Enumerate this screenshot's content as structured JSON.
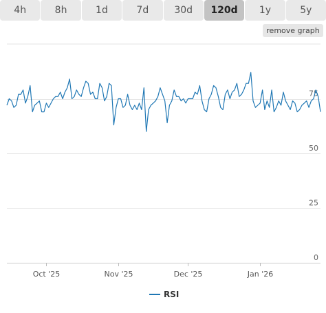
{
  "range_tabs": [
    {
      "label": "4h",
      "active": false
    },
    {
      "label": "8h",
      "active": false
    },
    {
      "label": "1d",
      "active": false
    },
    {
      "label": "7d",
      "active": false
    },
    {
      "label": "30d",
      "active": false
    },
    {
      "label": "120d",
      "active": true
    },
    {
      "label": "1y",
      "active": false
    },
    {
      "label": "5y",
      "active": false
    }
  ],
  "remove_graph_label": "remove graph",
  "colors": {
    "series": "#1f77b4",
    "grid": "#e3e3e3",
    "axis": "#dddddd",
    "tab_bg": "#e9e9e9",
    "tab_active_bg": "#c3c3c3"
  },
  "chart_data": {
    "type": "line",
    "title": "",
    "xlabel": "",
    "ylabel": "",
    "ylim": [
      0,
      100
    ],
    "yticks": [
      0,
      25,
      50,
      75
    ],
    "ytick_labels": [
      "0",
      "25",
      "50",
      "75"
    ],
    "grid": true,
    "legend_position": "bottom",
    "xlim": [
      "2025-09-14",
      "2026-01-27"
    ],
    "xticks": [
      {
        "date": "2025-10-01",
        "label": "Oct '25"
      },
      {
        "date": "2025-11-01",
        "label": "Nov '25"
      },
      {
        "date": "2025-12-01",
        "label": "Dec '25"
      },
      {
        "date": "2026-01-01",
        "label": "Jan '26"
      }
    ],
    "series": [
      {
        "name": "RSI",
        "color": "#1f77b4",
        "points": [
          [
            "2025-09-14",
            72
          ],
          [
            "2025-09-15",
            75
          ],
          [
            "2025-09-16",
            74
          ],
          [
            "2025-09-17",
            71
          ],
          [
            "2025-09-18",
            72
          ],
          [
            "2025-09-19",
            77
          ],
          [
            "2025-09-20",
            77
          ],
          [
            "2025-09-21",
            79
          ],
          [
            "2025-09-22",
            73
          ],
          [
            "2025-09-23",
            76
          ],
          [
            "2025-09-24",
            81
          ],
          [
            "2025-09-25",
            69
          ],
          [
            "2025-09-26",
            72
          ],
          [
            "2025-09-27",
            73
          ],
          [
            "2025-09-28",
            74
          ],
          [
            "2025-09-29",
            69
          ],
          [
            "2025-09-30",
            69
          ],
          [
            "2025-10-01",
            73
          ],
          [
            "2025-10-02",
            71
          ],
          [
            "2025-10-03",
            73
          ],
          [
            "2025-10-04",
            75
          ],
          [
            "2025-10-05",
            76
          ],
          [
            "2025-10-06",
            76
          ],
          [
            "2025-10-07",
            78
          ],
          [
            "2025-10-08",
            75
          ],
          [
            "2025-10-09",
            78
          ],
          [
            "2025-10-10",
            80
          ],
          [
            "2025-10-11",
            84
          ],
          [
            "2025-10-12",
            75
          ],
          [
            "2025-10-13",
            76
          ],
          [
            "2025-10-14",
            79
          ],
          [
            "2025-10-15",
            77
          ],
          [
            "2025-10-16",
            76
          ],
          [
            "2025-10-17",
            80
          ],
          [
            "2025-10-18",
            83
          ],
          [
            "2025-10-19",
            82
          ],
          [
            "2025-10-20",
            77
          ],
          [
            "2025-10-21",
            78
          ],
          [
            "2025-10-22",
            75
          ],
          [
            "2025-10-23",
            75
          ],
          [
            "2025-10-24",
            82
          ],
          [
            "2025-10-25",
            80
          ],
          [
            "2025-10-26",
            74
          ],
          [
            "2025-10-27",
            76
          ],
          [
            "2025-10-28",
            82
          ],
          [
            "2025-10-29",
            81
          ],
          [
            "2025-10-30",
            63
          ],
          [
            "2025-10-31",
            71
          ],
          [
            "2025-11-01",
            75
          ],
          [
            "2025-11-02",
            75
          ],
          [
            "2025-11-03",
            71
          ],
          [
            "2025-11-04",
            72
          ],
          [
            "2025-11-05",
            77
          ],
          [
            "2025-11-06",
            72
          ],
          [
            "2025-11-07",
            70
          ],
          [
            "2025-11-08",
            72
          ],
          [
            "2025-11-09",
            70
          ],
          [
            "2025-11-10",
            73
          ],
          [
            "2025-11-11",
            70
          ],
          [
            "2025-11-12",
            80
          ],
          [
            "2025-11-13",
            60
          ],
          [
            "2025-11-14",
            70
          ],
          [
            "2025-11-15",
            72
          ],
          [
            "2025-11-16",
            73
          ],
          [
            "2025-11-17",
            74
          ],
          [
            "2025-11-18",
            76
          ],
          [
            "2025-11-19",
            80
          ],
          [
            "2025-11-20",
            77
          ],
          [
            "2025-11-21",
            74
          ],
          [
            "2025-11-22",
            64
          ],
          [
            "2025-11-23",
            72
          ],
          [
            "2025-11-24",
            74
          ],
          [
            "2025-11-25",
            79
          ],
          [
            "2025-11-26",
            76
          ],
          [
            "2025-11-27",
            76
          ],
          [
            "2025-11-28",
            74
          ],
          [
            "2025-11-29",
            75
          ],
          [
            "2025-11-30",
            73
          ],
          [
            "2025-12-01",
            75
          ],
          [
            "2025-12-02",
            75
          ],
          [
            "2025-12-03",
            75
          ],
          [
            "2025-12-04",
            78
          ],
          [
            "2025-12-05",
            77
          ],
          [
            "2025-12-06",
            81
          ],
          [
            "2025-12-07",
            74
          ],
          [
            "2025-12-08",
            70
          ],
          [
            "2025-12-09",
            69
          ],
          [
            "2025-12-10",
            75
          ],
          [
            "2025-12-11",
            77
          ],
          [
            "2025-12-12",
            81
          ],
          [
            "2025-12-13",
            80
          ],
          [
            "2025-12-14",
            76
          ],
          [
            "2025-12-15",
            71
          ],
          [
            "2025-12-16",
            70
          ],
          [
            "2025-12-17",
            77
          ],
          [
            "2025-12-18",
            79
          ],
          [
            "2025-12-19",
            75
          ],
          [
            "2025-12-20",
            78
          ],
          [
            "2025-12-21",
            79
          ],
          [
            "2025-12-22",
            82
          ],
          [
            "2025-12-23",
            76
          ],
          [
            "2025-12-24",
            77
          ],
          [
            "2025-12-25",
            79
          ],
          [
            "2025-12-26",
            82
          ],
          [
            "2025-12-27",
            82
          ],
          [
            "2025-12-28",
            87
          ],
          [
            "2025-12-29",
            74
          ],
          [
            "2025-12-30",
            71
          ],
          [
            "2025-12-31",
            72
          ],
          [
            "2026-01-01",
            73
          ],
          [
            "2026-01-02",
            79
          ],
          [
            "2026-01-03",
            70
          ],
          [
            "2026-01-04",
            74
          ],
          [
            "2026-01-05",
            71
          ],
          [
            "2026-01-06",
            79
          ],
          [
            "2026-01-07",
            69
          ],
          [
            "2026-01-08",
            71
          ],
          [
            "2026-01-09",
            74
          ],
          [
            "2026-01-10",
            72
          ],
          [
            "2026-01-11",
            78
          ],
          [
            "2026-01-12",
            74
          ],
          [
            "2026-01-13",
            72
          ],
          [
            "2026-01-14",
            70
          ],
          [
            "2026-01-15",
            74
          ],
          [
            "2026-01-16",
            73
          ],
          [
            "2026-01-17",
            69
          ],
          [
            "2026-01-18",
            70
          ],
          [
            "2026-01-19",
            72
          ],
          [
            "2026-01-20",
            73
          ],
          [
            "2026-01-21",
            74
          ],
          [
            "2026-01-22",
            71
          ],
          [
            "2026-01-23",
            74
          ],
          [
            "2026-01-24",
            75
          ],
          [
            "2026-01-25",
            79
          ],
          [
            "2026-01-26",
            76
          ],
          [
            "2026-01-27",
            69
          ]
        ]
      }
    ]
  }
}
